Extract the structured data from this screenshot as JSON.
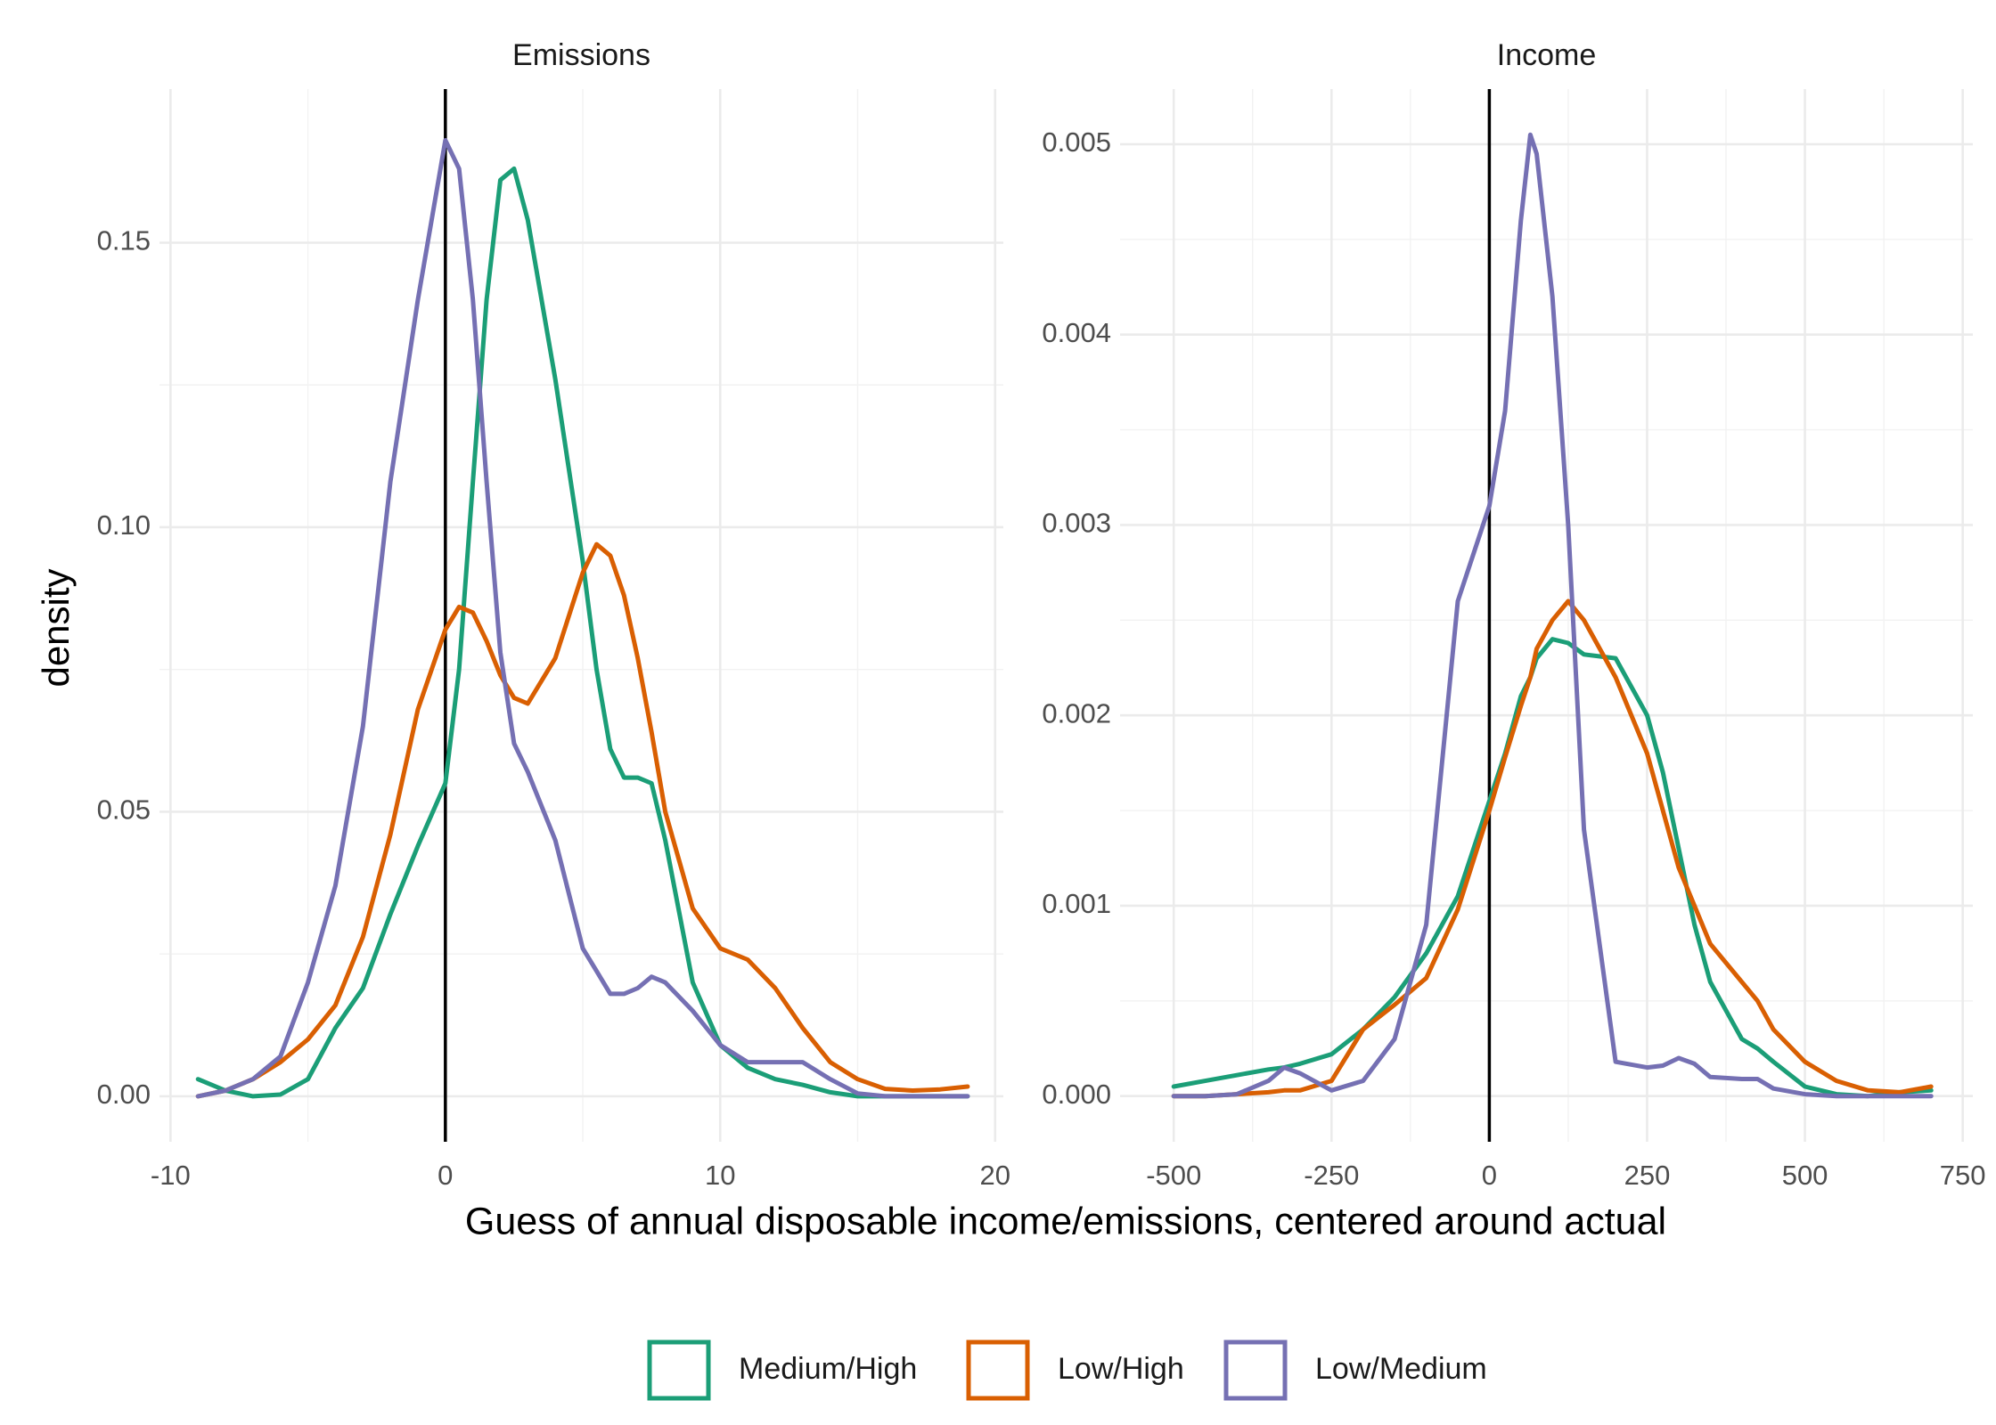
{
  "xlabel": "Guess of annual disposable income/emissions, centered around actual",
  "ylabel": "density",
  "legend": "bottom",
  "chart_data": [
    {
      "type": "line",
      "title": "Emissions",
      "grid": true,
      "vline": 0,
      "x": [
        -9,
        -8,
        -7,
        -6,
        -5,
        -4,
        -3,
        -2,
        -1,
        0,
        0.5,
        1,
        1.5,
        2,
        2.5,
        3,
        4,
        5,
        5.5,
        6,
        6.5,
        7,
        7.5,
        8,
        9,
        10,
        11,
        12,
        13,
        14,
        15,
        16,
        17,
        18,
        19
      ],
      "series": [
        {
          "name": "Medium/High",
          "color": "#1b9e77",
          "values": [
            0.003,
            0.001,
            0,
            0.0003,
            0.003,
            0.012,
            0.019,
            0.032,
            0.044,
            0.055,
            0.075,
            0.108,
            0.14,
            0.161,
            0.163,
            0.154,
            0.126,
            0.094,
            0.075,
            0.061,
            0.056,
            0.056,
            0.055,
            0.045,
            0.02,
            0.009,
            0.005,
            0.003,
            0.002,
            0.0007,
            0,
            0,
            0,
            0,
            0
          ]
        },
        {
          "name": "Low/High",
          "color": "#d95f02",
          "values": [
            0,
            0.001,
            0.003,
            0.006,
            0.01,
            0.016,
            0.028,
            0.046,
            0.068,
            0.082,
            0.086,
            0.085,
            0.08,
            0.074,
            0.07,
            0.069,
            0.077,
            0.092,
            0.097,
            0.095,
            0.088,
            0.077,
            0.064,
            0.05,
            0.033,
            0.026,
            0.024,
            0.019,
            0.012,
            0.006,
            0.003,
            0.0013,
            0.001,
            0.0012,
            0.0017
          ]
        },
        {
          "name": "Low/Medium",
          "color": "#7570b3",
          "values": [
            0,
            0.001,
            0.003,
            0.007,
            0.02,
            0.037,
            0.065,
            0.108,
            0.14,
            0.168,
            0.163,
            0.14,
            0.108,
            0.078,
            0.062,
            0.057,
            0.045,
            0.026,
            0.022,
            0.018,
            0.018,
            0.019,
            0.021,
            0.02,
            0.015,
            0.009,
            0.006,
            0.006,
            0.006,
            0.003,
            0.0005,
            0,
            0,
            0,
            0
          ]
        }
      ],
      "xlim": [
        -10.4,
        20.3
      ],
      "ylim": [
        -0.008,
        0.177
      ],
      "xticks": [
        -10,
        0,
        10,
        20
      ],
      "yticks": [
        {
          "value": 0,
          "label": "0.00"
        },
        {
          "value": 0.05,
          "label": "0.05"
        },
        {
          "value": 0.1,
          "label": "0.10"
        },
        {
          "value": 0.15,
          "label": "0.15"
        }
      ],
      "x_minor_grid": [
        -5,
        5,
        15
      ],
      "y_minor_grid": [
        0.025,
        0.075,
        0.125
      ]
    },
    {
      "type": "line",
      "title": "Income",
      "grid": true,
      "vline": 0,
      "x": [
        -500,
        -450,
        -400,
        -350,
        -325,
        -300,
        -250,
        -200,
        -150,
        -100,
        -50,
        0,
        25,
        50,
        65,
        75,
        100,
        125,
        150,
        200,
        250,
        275,
        300,
        325,
        350,
        400,
        425,
        450,
        500,
        550,
        600,
        650,
        700
      ],
      "series": [
        {
          "color": "#1b9e77",
          "values": [
            5e-05,
            8e-05,
            0.00011,
            0.00014,
            0.00015,
            0.00017,
            0.00022,
            0.00035,
            0.00052,
            0.00075,
            0.00105,
            0.00155,
            0.0018,
            0.0021,
            0.0022,
            0.0023,
            0.0024,
            0.00238,
            0.00232,
            0.0023,
            0.002,
            0.0017,
            0.0013,
            0.0009,
            0.0006,
            0.0003,
            0.00025,
            0.00018,
            5e-05,
            1e-05,
            0,
            2e-05,
            3e-05
          ]
        },
        {
          "color": "#d95f02",
          "values": [
            0,
            0,
            1e-05,
            2e-05,
            3e-05,
            3e-05,
            8e-05,
            0.00035,
            0.00048,
            0.00062,
            0.00098,
            0.0015,
            0.00178,
            0.00205,
            0.0022,
            0.00235,
            0.0025,
            0.0026,
            0.0025,
            0.0022,
            0.0018,
            0.0015,
            0.0012,
            0.001,
            0.0008,
            0.0006,
            0.0005,
            0.00035,
            0.00018,
            8e-05,
            3e-05,
            2e-05,
            5e-05
          ]
        },
        {
          "color": "#7570b3",
          "values": [
            0,
            0,
            1e-05,
            8e-05,
            0.00015,
            0.00012,
            3e-05,
            8e-05,
            0.0003,
            0.0009,
            0.0026,
            0.0031,
            0.0036,
            0.0046,
            0.00505,
            0.00495,
            0.0042,
            0.003,
            0.0014,
            0.00018,
            0.00015,
            0.00016,
            0.0002,
            0.00017,
            0.0001,
            9e-05,
            9e-05,
            4e-05,
            1e-05,
            0,
            0,
            0,
            0
          ]
        }
      ],
      "xlim": [
        -585,
        766
      ],
      "ylim": [
        -0.00024,
        0.00529
      ],
      "xticks": [
        -500,
        -250,
        0,
        250,
        500,
        750
      ],
      "yticks": [
        {
          "value": 0,
          "label": "0.000"
        },
        {
          "value": 0.001,
          "label": "0.001"
        },
        {
          "value": 0.002,
          "label": "0.002"
        },
        {
          "value": 0.003,
          "label": "0.003"
        },
        {
          "value": 0.004,
          "label": "0.004"
        },
        {
          "value": 0.005,
          "label": "0.005"
        }
      ],
      "x_minor_grid": [
        -375,
        -125,
        125,
        375,
        625
      ],
      "y_minor_grid": [
        0.0005,
        0.0015,
        0.0025,
        0.0035,
        0.0045
      ]
    }
  ]
}
